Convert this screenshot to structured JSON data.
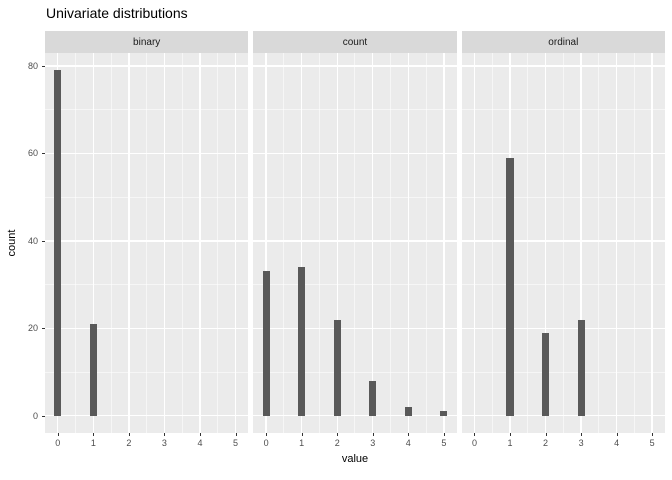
{
  "title": "Univariate distributions",
  "axes": {
    "x_title": "value",
    "y_title": "count",
    "x_ticks": [
      0,
      1,
      2,
      3,
      4,
      5
    ],
    "y_ticks": [
      0,
      20,
      40,
      60,
      80
    ]
  },
  "chart_data": {
    "type": "bar",
    "title": "Univariate distributions",
    "xlabel": "value",
    "ylabel": "count",
    "facets": [
      {
        "label": "binary",
        "x": [
          0,
          1
        ],
        "counts": [
          79,
          21
        ]
      },
      {
        "label": "count",
        "x": [
          0,
          1,
          2,
          3,
          4,
          5
        ],
        "counts": [
          33,
          34,
          22,
          8,
          2,
          1
        ]
      },
      {
        "label": "ordinal",
        "x": [
          1,
          2,
          3
        ],
        "counts": [
          59,
          19,
          22
        ]
      }
    ],
    "xlim": [
      -0.36,
      5.36
    ],
    "ylim": [
      -3.95,
      82.95
    ],
    "x_major_gridlines": [
      0,
      1,
      2,
      3,
      4,
      5
    ],
    "x_minor_gridlines": [
      0.5,
      1.5,
      2.5,
      3.5,
      4.5
    ],
    "y_major_gridlines": [
      0,
      20,
      40,
      60,
      80
    ],
    "y_minor_gridlines": [
      10,
      30,
      50,
      70
    ],
    "bar_width": 0.2,
    "grid": "on",
    "legend_position": "none"
  },
  "colors": {
    "panel_bg": "#EBEBEB",
    "strip_bg": "#D9D9D9",
    "bar": "#595959",
    "gridline": "#FFFFFF",
    "axis_text": "#4D4D4D",
    "strip_text": "#1A1A1A",
    "title_text": "#000000",
    "tick_mark": "#333333"
  }
}
